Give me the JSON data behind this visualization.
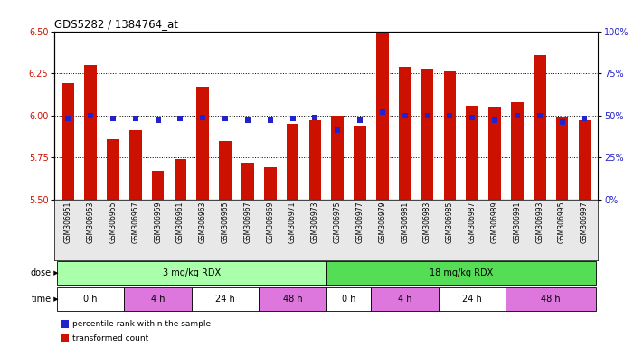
{
  "title": "GDS5282 / 1384764_at",
  "samples": [
    "GSM306951",
    "GSM306953",
    "GSM306955",
    "GSM306957",
    "GSM306959",
    "GSM306961",
    "GSM306963",
    "GSM306965",
    "GSM306967",
    "GSM306969",
    "GSM306971",
    "GSM306973",
    "GSM306975",
    "GSM306977",
    "GSM306979",
    "GSM306981",
    "GSM306983",
    "GSM306985",
    "GSM306987",
    "GSM306989",
    "GSM306991",
    "GSM306993",
    "GSM306995",
    "GSM306997"
  ],
  "transformed_count": [
    6.19,
    6.3,
    5.86,
    5.91,
    5.67,
    5.74,
    6.17,
    5.85,
    5.72,
    5.69,
    5.95,
    5.97,
    6.0,
    5.94,
    6.49,
    6.29,
    6.28,
    6.26,
    6.06,
    6.05,
    6.08,
    6.36,
    5.99,
    5.97
  ],
  "percentile_rank": [
    48,
    50,
    48,
    48,
    47,
    48,
    49,
    48,
    47,
    47,
    48,
    49,
    41,
    47,
    52,
    50,
    50,
    50,
    49,
    47,
    50,
    50,
    46,
    48
  ],
  "ylim_left": [
    5.5,
    6.5
  ],
  "ylim_right": [
    0,
    100
  ],
  "yticks_left": [
    5.5,
    5.75,
    6.0,
    6.25,
    6.5
  ],
  "yticks_right": [
    0,
    25,
    50,
    75,
    100
  ],
  "bar_color": "#cc1100",
  "dot_color": "#2222cc",
  "dose_groups": [
    {
      "label": "3 mg/kg RDX",
      "start": 0,
      "end": 12,
      "color": "#aaffaa"
    },
    {
      "label": "18 mg/kg RDX",
      "start": 12,
      "end": 24,
      "color": "#55dd55"
    }
  ],
  "time_groups": [
    {
      "label": "0 h",
      "start": 0,
      "end": 3,
      "color": "#ffffff"
    },
    {
      "label": "4 h",
      "start": 3,
      "end": 6,
      "color": "#dd77dd"
    },
    {
      "label": "24 h",
      "start": 6,
      "end": 9,
      "color": "#ffffff"
    },
    {
      "label": "48 h",
      "start": 9,
      "end": 12,
      "color": "#dd77dd"
    },
    {
      "label": "0 h",
      "start": 12,
      "end": 14,
      "color": "#ffffff"
    },
    {
      "label": "4 h",
      "start": 14,
      "end": 17,
      "color": "#dd77dd"
    },
    {
      "label": "24 h",
      "start": 17,
      "end": 20,
      "color": "#ffffff"
    },
    {
      "label": "48 h",
      "start": 20,
      "end": 24,
      "color": "#dd77dd"
    }
  ],
  "legend_items": [
    {
      "label": "transformed count",
      "color": "#cc1100"
    },
    {
      "label": "percentile rank within the sample",
      "color": "#2222cc"
    }
  ],
  "grid_lines": [
    5.75,
    6.0,
    6.25
  ]
}
